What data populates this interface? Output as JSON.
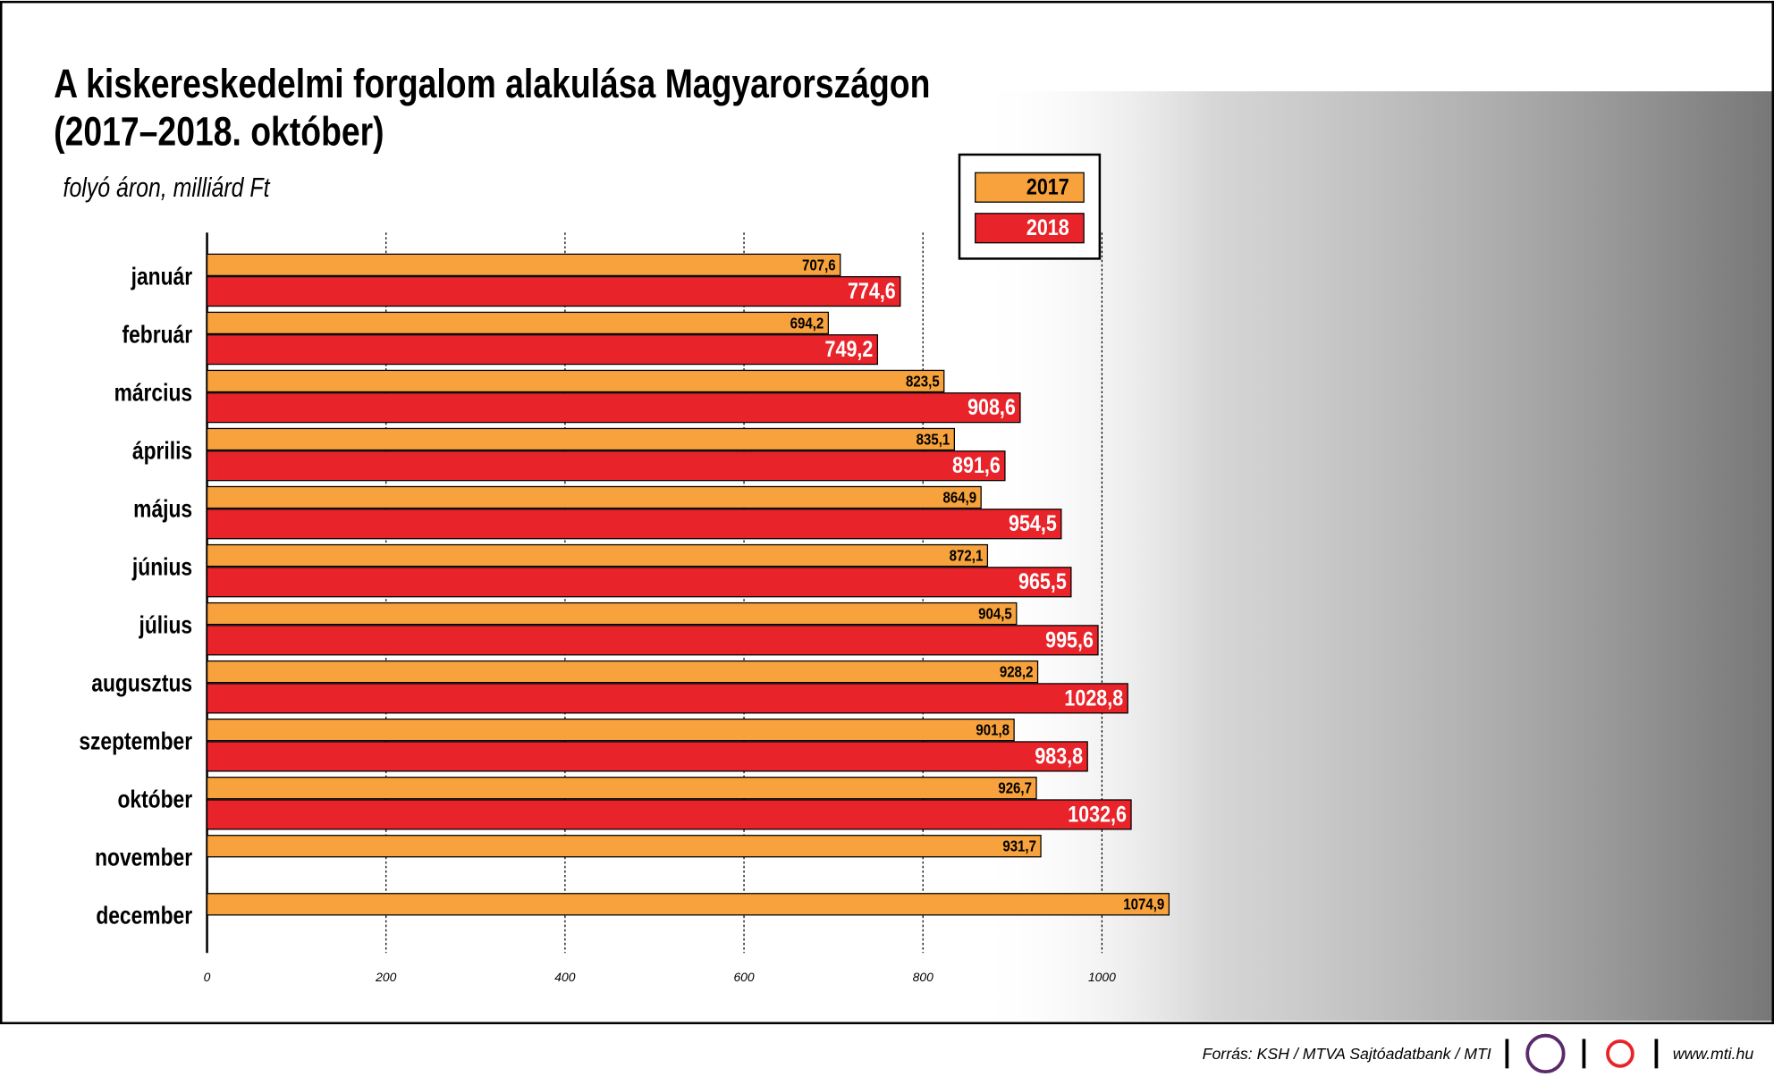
{
  "chart_data": {
    "type": "bar",
    "orientation": "horizontal",
    "title": "A kiskereskedelmi forgalom alakulása Magyarországon",
    "title_line2": "(2017–2018. október)",
    "subtitle": "folyó áron, milliárd Ft",
    "categories": [
      "január",
      "február",
      "március",
      "április",
      "május",
      "június",
      "július",
      "augusztus",
      "szeptember",
      "október",
      "november",
      "december"
    ],
    "series": [
      {
        "name": "2017",
        "color": "#f7a23c",
        "values": [
          707.6,
          694.2,
          823.5,
          835.1,
          864.9,
          872.1,
          904.5,
          928.2,
          901.8,
          926.7,
          931.7,
          1074.9
        ],
        "value_labels": [
          "707,6",
          "694,2",
          "823,5",
          "835,1",
          "864,9",
          "872,1",
          "904,5",
          "928,2",
          "901,8",
          "926,7",
          "931,7",
          "1074,9"
        ]
      },
      {
        "name": "2018",
        "color": "#e8242a",
        "values": [
          774.6,
          749.2,
          908.6,
          891.6,
          954.5,
          965.5,
          995.6,
          1028.8,
          983.8,
          1032.6,
          null,
          null
        ],
        "value_labels": [
          "774,6",
          "749,2",
          "908,6",
          "891,6",
          "954,5",
          "965,5",
          "995,6",
          "1028,8",
          "983,8",
          "1032,6",
          null,
          null
        ]
      }
    ],
    "xlim": [
      0,
      1100
    ],
    "xticks": [
      0,
      200,
      400,
      600,
      800,
      1000
    ],
    "grid": true,
    "legend": "top-right",
    "source": "Forrás: KSH / MTVA Sajtóadatbank / MTI",
    "website": "www.mti.hu"
  }
}
